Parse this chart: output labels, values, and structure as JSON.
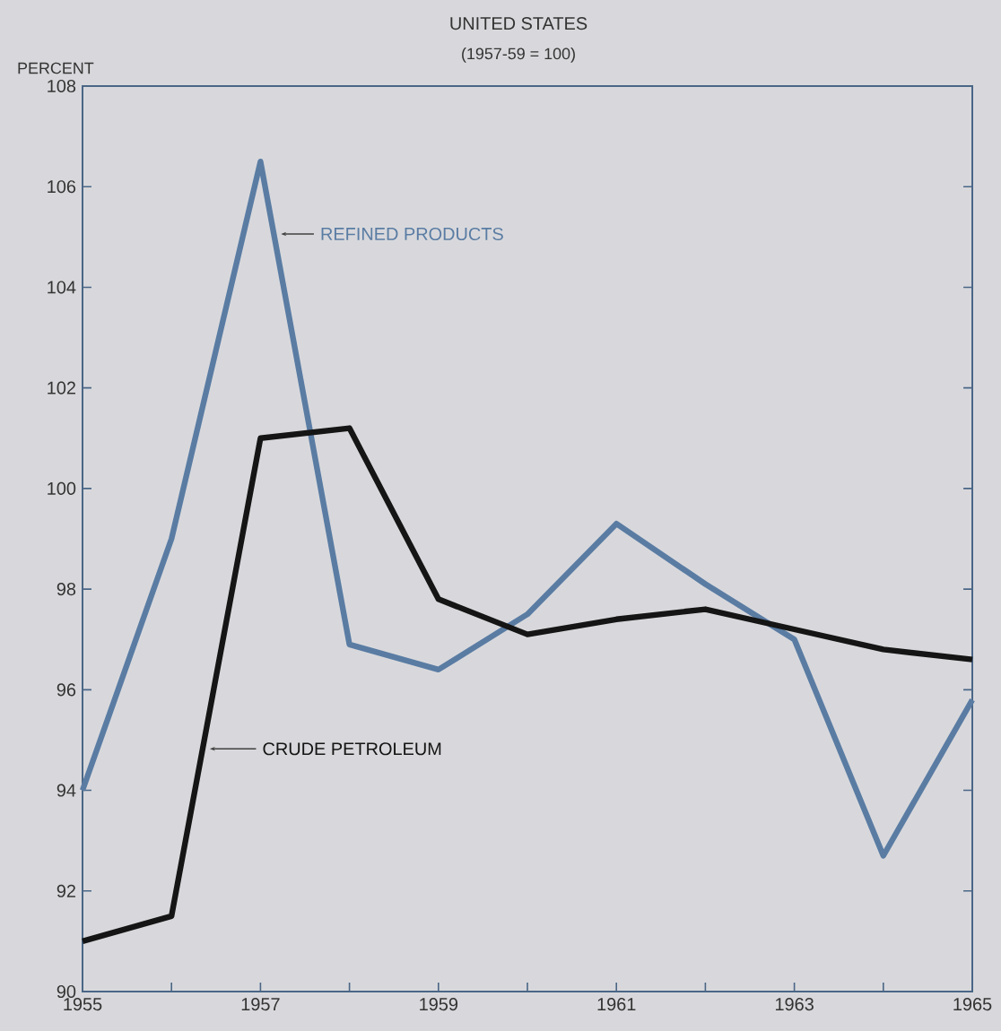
{
  "chart_data": {
    "type": "line",
    "title": "UNITED STATES",
    "subtitle": "(1957-59 = 100)",
    "ylabel": "PERCENT",
    "x": [
      1955,
      1956,
      1957,
      1958,
      1959,
      1960,
      1961,
      1962,
      1963,
      1964,
      1965
    ],
    "series": [
      {
        "name": "REFINED PRODUCTS",
        "color": "#5a7ca3",
        "values": [
          94.0,
          99.0,
          106.5,
          96.9,
          96.4,
          97.5,
          99.3,
          98.1,
          97.0,
          92.7,
          95.8
        ]
      },
      {
        "name": "CRUDE PETROLEUM",
        "color": "#151515",
        "values": [
          91.0,
          91.5,
          101.0,
          101.2,
          97.8,
          97.1,
          97.4,
          97.6,
          97.2,
          96.8,
          96.6
        ]
      }
    ],
    "xlim": [
      1955,
      1965
    ],
    "ylim": [
      90,
      108
    ],
    "xticks": [
      1955,
      {
        "value": 1956,
        "label": null
      },
      1957,
      {
        "value": 1958,
        "label": null
      },
      1959,
      {
        "value": 1960,
        "label": null
      },
      1961,
      {
        "value": 1962,
        "label": null
      },
      1963,
      {
        "value": 1964,
        "label": null
      },
      1965
    ],
    "yticks": [
      90,
      92,
      94,
      96,
      98,
      100,
      102,
      104,
      106,
      108
    ],
    "grid": false,
    "legend": false,
    "marker": "none",
    "line_style": "solid"
  }
}
